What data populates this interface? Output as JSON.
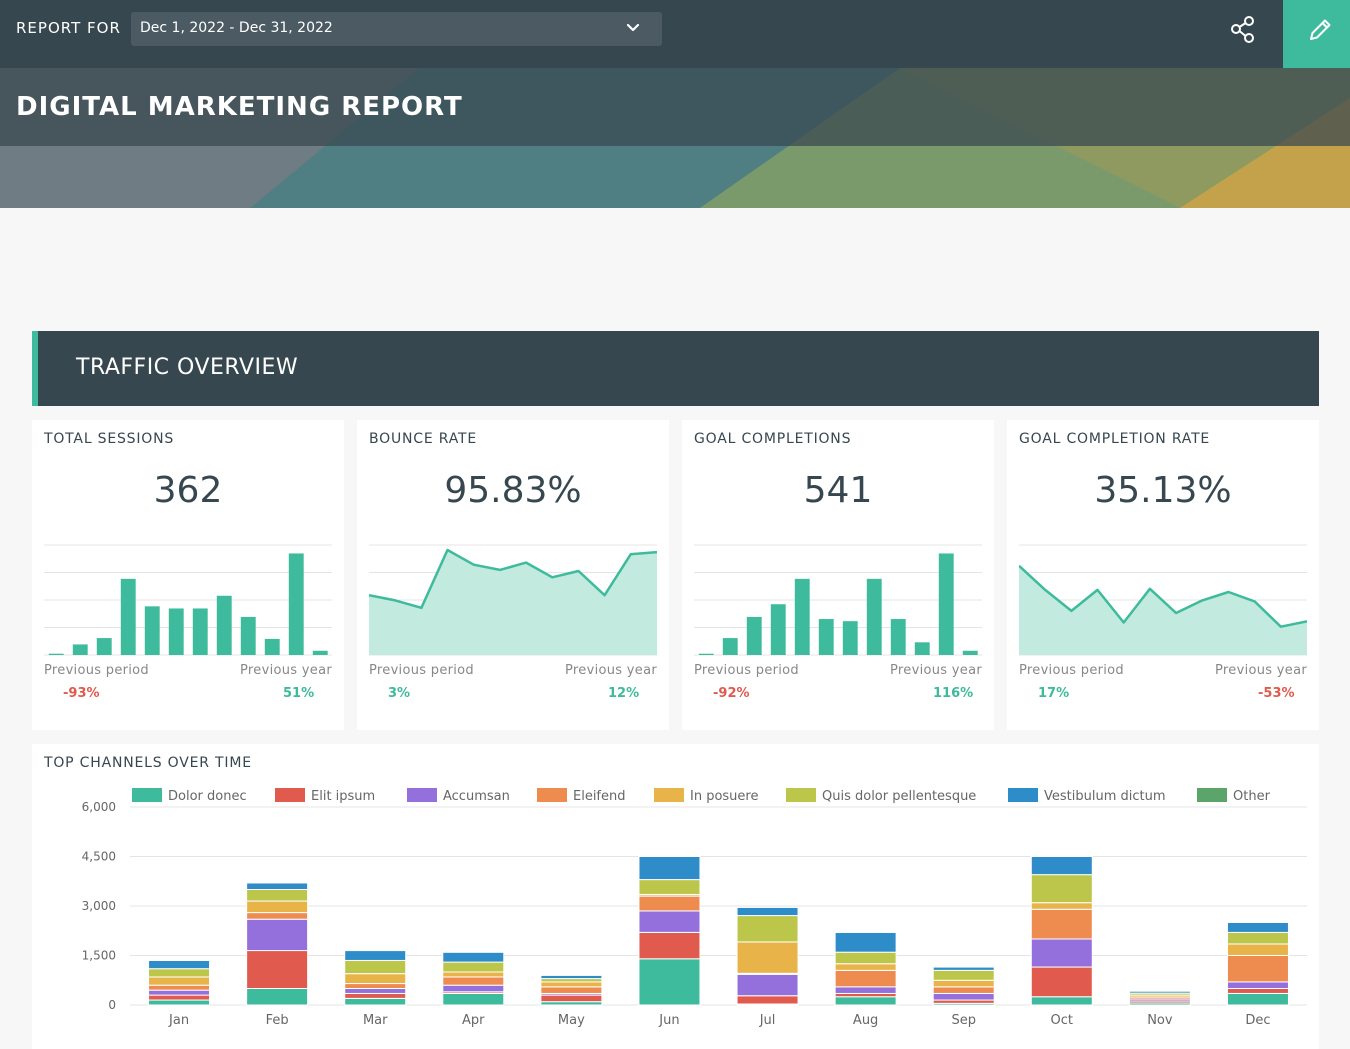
{
  "header": {
    "report_for_label": "REPORT FOR",
    "date_range": "Dec 1, 2022 - Dec 31, 2022",
    "title": "DIGITAL MARKETING REPORT"
  },
  "section": {
    "title": "TRAFFIC OVERVIEW"
  },
  "kpis": [
    {
      "label": "TOTAL SESSIONS",
      "value": "362",
      "prev_label": "Previous period",
      "prev_value": "-93%",
      "year_label": "Previous year",
      "year_value": "51%",
      "chart": {
        "type": "bar",
        "values": [
          0.3,
          2.5,
          4,
          18,
          11.5,
          11,
          11,
          14,
          9,
          3.8,
          24,
          1
        ]
      }
    },
    {
      "label": "BOUNCE RATE",
      "value": "95.83%",
      "prev_label": "Previous period",
      "prev_value": "3%",
      "year_label": "Previous year",
      "year_value": "12%",
      "chart": {
        "type": "area",
        "values": [
          57,
          52,
          45,
          100,
          86,
          81,
          88,
          74,
          80,
          57,
          96,
          98
        ]
      }
    },
    {
      "label": "GOAL COMPLETIONS",
      "value": "541",
      "prev_label": "Previous period",
      "prev_value": "-92%",
      "year_label": "Previous year",
      "year_value": "116%",
      "chart": {
        "type": "bar",
        "values": [
          0.3,
          4,
          9,
          12,
          18,
          8.5,
          8,
          18,
          8.5,
          3,
          24,
          1
        ]
      }
    },
    {
      "label": "GOAL COMPLETION RATE",
      "value": "35.13%",
      "prev_label": "Previous period",
      "prev_value": "17%",
      "year_label": "Previous year",
      "year_value": "-53%",
      "chart": {
        "type": "area",
        "values": [
          85,
          62,
          42,
          62,
          31,
          63,
          40,
          52,
          60,
          51,
          27,
          32
        ]
      }
    }
  ],
  "channels": {
    "label": "TOP CHANNELS OVER TIME",
    "colors": [
      "#3dbb9c",
      "#e05a4e",
      "#9370db",
      "#ee8b4f",
      "#e8b44a",
      "#bcc64b",
      "#2e8dc8",
      "#5ba56b"
    ],
    "chart_data": {
      "type": "bar",
      "stacked": true,
      "categories": [
        "Jan",
        "Feb",
        "Mar",
        "Apr",
        "May",
        "Jun",
        "Jul",
        "Aug",
        "Sep",
        "Oct",
        "Nov",
        "Dec"
      ],
      "series": [
        {
          "name": "Dolor donec",
          "values": [
            150,
            500,
            200,
            350,
            100,
            1400,
            30,
            250,
            50,
            250,
            60,
            350
          ]
        },
        {
          "name": "Elit ipsum",
          "values": [
            150,
            1150,
            150,
            50,
            200,
            800,
            250,
            100,
            100,
            900,
            60,
            150
          ]
        },
        {
          "name": "Accumsan",
          "values": [
            150,
            950,
            150,
            200,
            50,
            650,
            650,
            200,
            200,
            850,
            60,
            200
          ]
        },
        {
          "name": "Eleifend",
          "values": [
            150,
            200,
            150,
            250,
            200,
            450,
            30,
            500,
            200,
            900,
            60,
            800
          ]
        },
        {
          "name": "In posuere",
          "values": [
            250,
            350,
            300,
            150,
            150,
            50,
            950,
            200,
            200,
            200,
            60,
            350
          ]
        },
        {
          "name": "Quis dolor pellentesque",
          "values": [
            250,
            350,
            400,
            300,
            100,
            450,
            800,
            350,
            300,
            850,
            60,
            350
          ]
        },
        {
          "name": "Vestibulum dictum",
          "values": [
            250,
            200,
            300,
            300,
            100,
            700,
            250,
            600,
            100,
            550,
            60,
            300
          ]
        },
        {
          "name": "Other",
          "values": [
            10,
            20,
            10,
            10,
            10,
            10,
            10,
            10,
            10,
            10,
            10,
            10
          ]
        }
      ],
      "yticks": [
        "6,000",
        "4,500",
        "3,000",
        "1,500",
        "0"
      ],
      "ylim": [
        0,
        6000
      ],
      "grid": true,
      "legend": "top"
    }
  },
  "icons": {
    "share": "share-icon",
    "edit": "pencil-icon",
    "dropdown": "chevron-down-icon"
  }
}
